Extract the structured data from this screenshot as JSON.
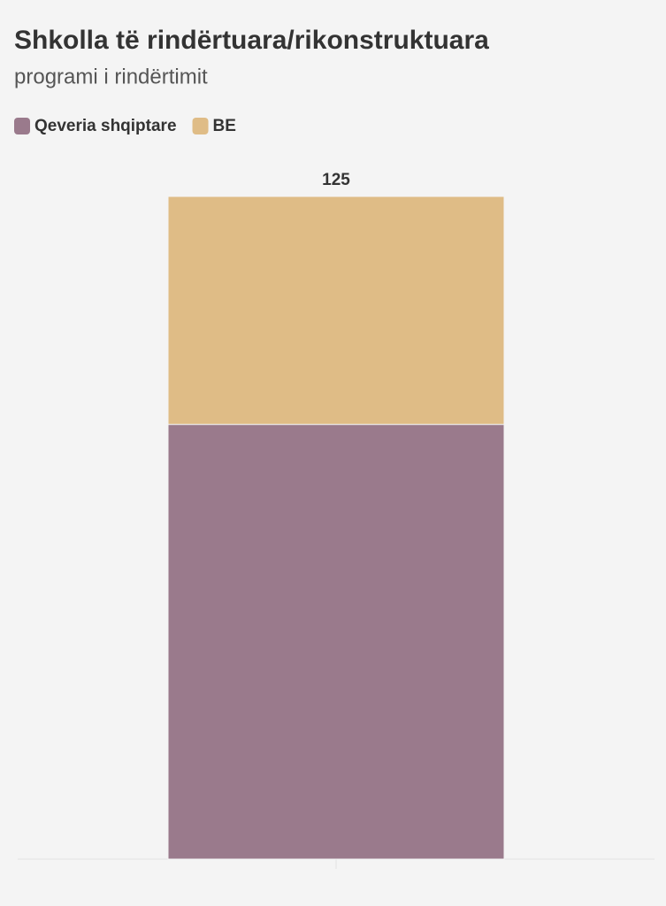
{
  "chart_data": {
    "type": "stacked_bar",
    "title": "Shkolla të rindërtuara/rikonstruktuara",
    "subtitle": "programi i rindërtimit",
    "categories": [
      null
    ],
    "series": [
      {
        "name": "Qeveria shqiptare",
        "color": "#9a7a8c",
        "values": [
          82
        ]
      },
      {
        "name": "BE",
        "color": "#dfbc86",
        "values": [
          43
        ]
      }
    ],
    "totals": [
      125
    ],
    "ylim": [
      0,
      125
    ],
    "legend": "top-left"
  }
}
